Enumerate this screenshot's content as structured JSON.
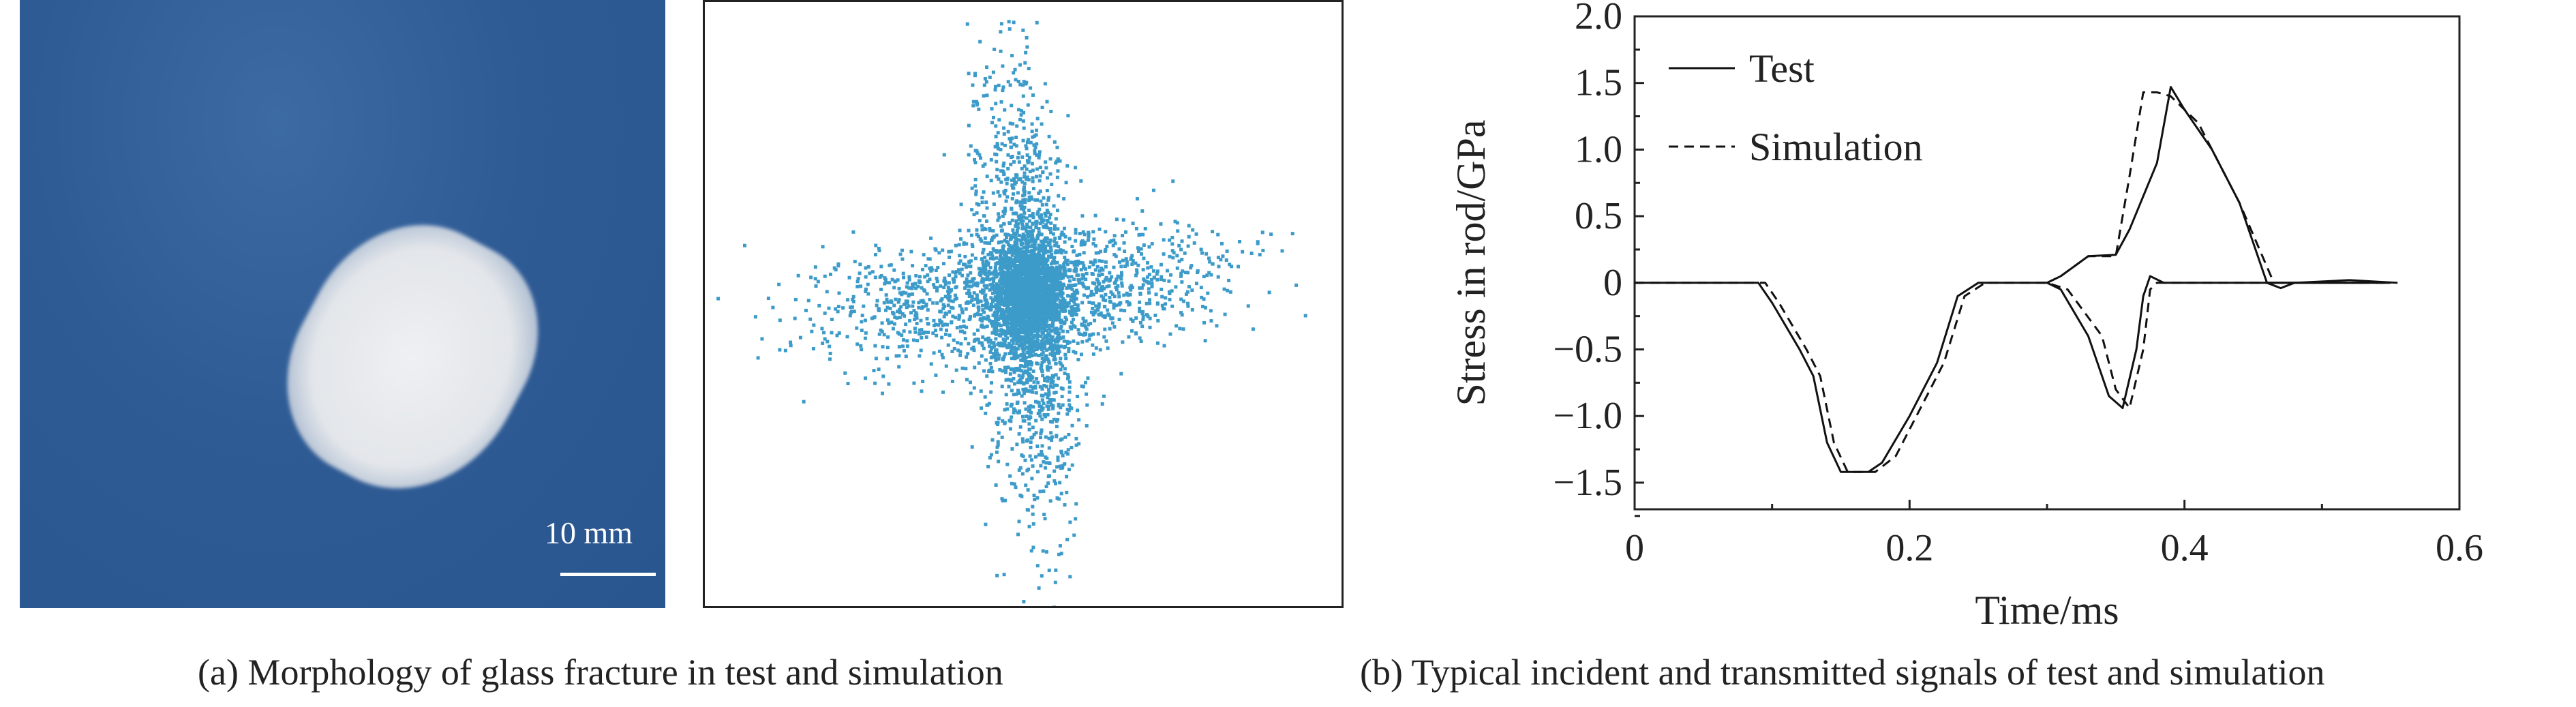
{
  "panel_a": {
    "scale_label": "10 mm",
    "caption": "(a) Morphology of glass fracture in test and simulation",
    "scatter_color": "#3d9bc9"
  },
  "panel_b": {
    "caption": "(b) Typical incident and transmitted signals of test and simulation"
  },
  "chart_data": {
    "type": "line",
    "xlabel": "Time/ms",
    "ylabel": "Stress in rod/GPa",
    "xlim": [
      0,
      0.6
    ],
    "ylim": [
      -1.7,
      2.0
    ],
    "xticks": [
      0,
      0.2,
      0.4,
      0.6
    ],
    "xtick_labels": [
      "0",
      "0.2",
      "0.4",
      "0.6"
    ],
    "yticks": [
      2.0,
      1.5,
      1.0,
      0.5,
      0,
      -0.5,
      -1.0,
      -1.5
    ],
    "ytick_labels": [
      "2.0",
      "1.5",
      "1.0",
      "0.5",
      "0",
      "−0.5",
      "−1.0",
      "−1.5"
    ],
    "legend_position": "top-left",
    "grid": false,
    "series": [
      {
        "name": "Test",
        "style": "solid",
        "segments": [
          [
            [
              0,
              0
            ],
            [
              0.09,
              0
            ],
            [
              0.1,
              -0.15
            ],
            [
              0.12,
              -0.5
            ],
            [
              0.13,
              -0.7
            ],
            [
              0.14,
              -1.2
            ],
            [
              0.15,
              -1.42
            ],
            [
              0.17,
              -1.42
            ],
            [
              0.18,
              -1.35
            ],
            [
              0.2,
              -1.0
            ],
            [
              0.22,
              -0.6
            ],
            [
              0.235,
              -0.1
            ],
            [
              0.25,
              0
            ],
            [
              0.3,
              0
            ],
            [
              0.31,
              -0.05
            ],
            [
              0.33,
              -0.4
            ],
            [
              0.345,
              -0.85
            ],
            [
              0.355,
              -0.94
            ],
            [
              0.365,
              -0.5
            ],
            [
              0.37,
              -0.1
            ],
            [
              0.375,
              0.05
            ],
            [
              0.385,
              0
            ],
            [
              0.55,
              0
            ]
          ],
          [
            [
              0.3,
              0
            ],
            [
              0.31,
              0.05
            ],
            [
              0.33,
              0.2
            ],
            [
              0.35,
              0.21
            ],
            [
              0.36,
              0.4
            ],
            [
              0.38,
              0.9
            ],
            [
              0.39,
              1.47
            ],
            [
              0.4,
              1.3
            ],
            [
              0.42,
              1.0
            ],
            [
              0.44,
              0.6
            ],
            [
              0.46,
              0
            ],
            [
              0.47,
              -0.04
            ],
            [
              0.48,
              0
            ],
            [
              0.52,
              0.02
            ],
            [
              0.555,
              0
            ]
          ]
        ]
      },
      {
        "name": "Simulation",
        "style": "dashed",
        "segments": [
          [
            [
              0,
              0
            ],
            [
              0.095,
              0
            ],
            [
              0.105,
              -0.15
            ],
            [
              0.125,
              -0.5
            ],
            [
              0.135,
              -0.7
            ],
            [
              0.145,
              -1.2
            ],
            [
              0.155,
              -1.42
            ],
            [
              0.175,
              -1.42
            ],
            [
              0.19,
              -1.3
            ],
            [
              0.205,
              -1.0
            ],
            [
              0.225,
              -0.6
            ],
            [
              0.24,
              -0.1
            ],
            [
              0.255,
              0
            ],
            [
              0.3,
              0
            ],
            [
              0.315,
              -0.05
            ],
            [
              0.34,
              -0.4
            ],
            [
              0.35,
              -0.8
            ],
            [
              0.36,
              -0.94
            ],
            [
              0.37,
              -0.5
            ],
            [
              0.375,
              -0.05
            ],
            [
              0.38,
              0
            ],
            [
              0.55,
              0
            ]
          ],
          [
            [
              0.3,
              0
            ],
            [
              0.31,
              0.05
            ],
            [
              0.33,
              0.2
            ],
            [
              0.35,
              0.2
            ],
            [
              0.36,
              0.8
            ],
            [
              0.37,
              1.43
            ],
            [
              0.38,
              1.43
            ],
            [
              0.39,
              1.4
            ],
            [
              0.41,
              1.2
            ],
            [
              0.44,
              0.6
            ],
            [
              0.465,
              0
            ],
            [
              0.5,
              0
            ],
            [
              0.53,
              0
            ]
          ]
        ]
      }
    ]
  }
}
